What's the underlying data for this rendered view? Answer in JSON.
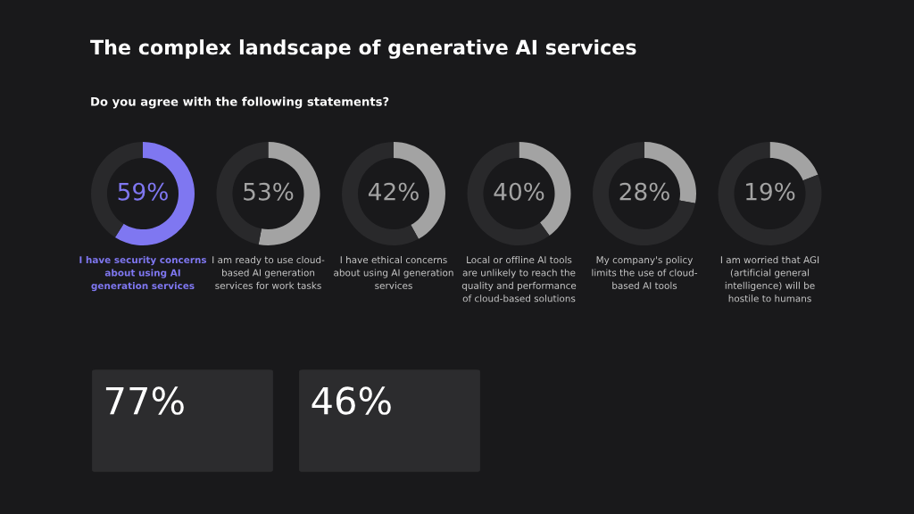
{
  "chart_data": [
    {
      "type": "donut",
      "title": "The complex landscape of generative AI services",
      "subtitle": "Do you agree with the following statements?",
      "categories": [
        null,
        null
      ],
      "values": [
        59,
        41
      ],
      "colors": [
        "#7f77f1",
        "#29292b"
      ],
      "annotations": [
        "59%",
        "I have security concerns\nabout using AI\ngeneration services"
      ]
    },
    {
      "type": "donut",
      "categories": [
        null,
        null
      ],
      "values": [
        53,
        47
      ],
      "colors": [
        "#a3a3a3",
        "#29292b"
      ],
      "annotations": [
        "53%",
        "I am ready to use cloud-\nbased AI generation\nservices for work tasks"
      ]
    },
    {
      "type": "donut",
      "categories": [
        null,
        null
      ],
      "values": [
        42,
        58
      ],
      "colors": [
        "#a3a3a3",
        "#29292b"
      ],
      "annotations": [
        "42%",
        "I have ethical concerns\nabout using AI generation\nservices"
      ]
    },
    {
      "type": "donut",
      "categories": [
        null,
        null
      ],
      "values": [
        40,
        60
      ],
      "colors": [
        "#a3a3a3",
        "#29292b"
      ],
      "annotations": [
        "40%",
        "Local or offline AI tools\nare unlikely to reach the\nquality and performance\nof cloud-based solutions"
      ]
    },
    {
      "type": "donut",
      "categories": [
        null,
        null
      ],
      "values": [
        28,
        72
      ],
      "colors": [
        "#a3a3a3",
        "#29292b"
      ],
      "annotations": [
        "28%",
        "My company's policy\nlimits the use of cloud-\nbased AI tools"
      ]
    },
    {
      "type": "donut",
      "categories": [
        null,
        null
      ],
      "values": [
        19,
        81
      ],
      "colors": [
        "#a3a3a3",
        "#29292b"
      ],
      "annotations": [
        "19%",
        "I am worried that AGI\n(artificial general\nintelligence) will be\nhostile to humans"
      ]
    },
    {
      "type": "other",
      "annotations": [
        "77%"
      ]
    },
    {
      "type": "other",
      "annotations": [
        "46%"
      ]
    }
  ]
}
